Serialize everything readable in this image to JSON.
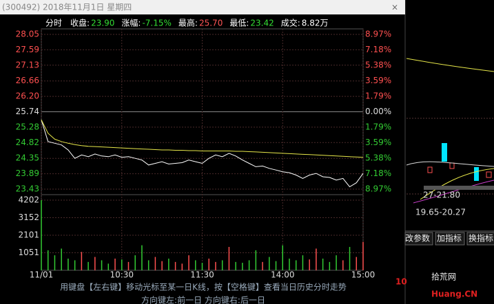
{
  "window": {
    "title": "(300492) 2018年11月1日 星期四",
    "close": "×"
  },
  "chart_data": {
    "type": "intraday",
    "info": [
      {
        "label": "分时",
        "color": "#ffffff"
      },
      {
        "label": "收盘:",
        "value": "23.90",
        "color": "#33dd33"
      },
      {
        "label": "涨幅:",
        "value": "-7.15%",
        "color": "#33dd33"
      },
      {
        "label": "最高:",
        "value": "25.70",
        "color": "#ff5555"
      },
      {
        "label": "最低:",
        "value": "23.42",
        "color": "#33dd33"
      },
      {
        "label": "成交:",
        "value": "8.82万",
        "color": "#ffffff"
      }
    ],
    "x": [
      0,
      5,
      10,
      15,
      20,
      25,
      30,
      35,
      40,
      45,
      50,
      55,
      60,
      65,
      70,
      75,
      80,
      85,
      90,
      95,
      100,
      105,
      110,
      115,
      120,
      125,
      130,
      135,
      140,
      145,
      150,
      155,
      160,
      165,
      170,
      175,
      180,
      185,
      190,
      195,
      200,
      205,
      210,
      215,
      220,
      225,
      230,
      235,
      240
    ],
    "xlim": [
      0,
      240
    ],
    "xticks": [
      {
        "value": 0,
        "label": "11/01"
      },
      {
        "value": 60,
        "label": "10:30"
      },
      {
        "value": 120,
        "label": "11:30"
      },
      {
        "value": 180,
        "label": "14:00"
      },
      {
        "value": 240,
        "label": "15:00"
      }
    ],
    "series": [
      {
        "name": "price",
        "color": "#ffffff",
        "values": [
          25.5,
          24.85,
          24.8,
          24.75,
          24.6,
          24.35,
          24.45,
          24.4,
          24.48,
          24.42,
          24.4,
          24.45,
          24.38,
          24.4,
          24.35,
          24.3,
          24.15,
          24.2,
          24.25,
          24.18,
          24.2,
          24.22,
          24.3,
          24.25,
          24.2,
          24.35,
          24.45,
          24.4,
          24.5,
          24.42,
          24.3,
          24.2,
          24.1,
          24.12,
          24.05,
          24.0,
          23.95,
          23.92,
          23.85,
          23.75,
          23.85,
          23.9,
          23.8,
          23.78,
          23.7,
          23.75,
          23.5,
          23.62,
          23.9
        ]
      },
      {
        "name": "average",
        "color": "#e8e84a",
        "values": [
          25.5,
          25.1,
          24.92,
          24.85,
          24.8,
          24.76,
          24.73,
          24.71,
          24.7,
          24.69,
          24.68,
          24.67,
          24.66,
          24.65,
          24.64,
          24.63,
          24.62,
          24.61,
          24.6,
          24.6,
          24.59,
          24.59,
          24.58,
          24.58,
          24.57,
          24.57,
          24.57,
          24.57,
          24.57,
          24.56,
          24.56,
          24.55,
          24.54,
          24.53,
          24.52,
          24.51,
          24.5,
          24.49,
          24.48,
          24.47,
          24.46,
          24.45,
          24.44,
          24.43,
          24.42,
          24.41,
          24.4,
          24.39,
          24.38
        ]
      }
    ],
    "ylim": [
      23.43,
      28.05
    ],
    "yticks": [
      28.05,
      27.59,
      27.13,
      26.66,
      {
        "value": 26.2,
        "label": "26.20"
      },
      25.74,
      25.28,
      24.82,
      24.35,
      23.89,
      23.43
    ],
    "y2lim": [
      -8.97,
      8.97
    ],
    "y2ticks": [
      {
        "value": 8.97,
        "label": "8.97%"
      },
      {
        "value": 7.18,
        "label": "7.18%"
      },
      {
        "value": 5.38,
        "label": "5.38%"
      },
      {
        "value": 3.59,
        "label": "3.59%"
      },
      {
        "value": 1.79,
        "label": "1.79%"
      },
      {
        "value": 0,
        "label": "0.00%"
      },
      {
        "value": -1.79,
        "label": "1.79%"
      },
      {
        "value": -3.59,
        "label": "3.59%"
      },
      {
        "value": -5.38,
        "label": "5.38%"
      },
      {
        "value": -7.18,
        "label": "7.18%"
      },
      {
        "value": -8.97,
        "label": "8.97%"
      }
    ],
    "up_color": "#ff5050",
    "down_color": "#33cc33",
    "flat_color": "#dddddd",
    "volume": {
      "values": [
        4202,
        1200,
        900,
        1300,
        700,
        600,
        1100,
        500,
        800,
        600,
        400,
        700,
        650,
        500,
        900,
        1500,
        600,
        800,
        550,
        700,
        500,
        400,
        900,
        600,
        450,
        700,
        500,
        600,
        1400,
        500,
        450,
        600,
        1200,
        500,
        800,
        550,
        1500,
        700,
        600,
        900,
        650,
        1300,
        700,
        500,
        900,
        600,
        1400,
        800,
        1700
      ],
      "ylim": [
        0,
        4202
      ],
      "yticks": [
        1051,
        2101,
        3152,
        4202
      ]
    },
    "grid": true
  },
  "side_panel": {
    "range_1": "27-21.80",
    "range_2": "19.65-20.27",
    "buttons": [
      "改参数",
      "加指标",
      "换指标"
    ]
  },
  "footer": [
    "用键盘【左右键】移动光标至某一日K线，按【空格键】查看当日历史分时走势",
    "方向键左:前一日    方向键右:后一日"
  ],
  "watermark": {
    "number": "10",
    "name": "拾荒网",
    "site": "Huang.CN"
  }
}
